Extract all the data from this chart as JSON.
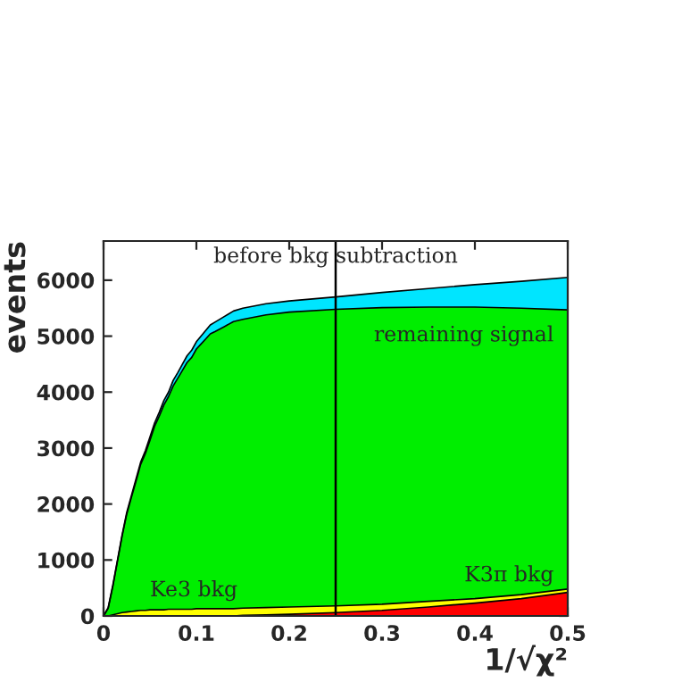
{
  "chart_data": {
    "type": "area",
    "stacked": true,
    "xlabel": "1/√χ²",
    "ylabel": "events",
    "x": [
      0,
      0.005,
      0.01,
      0.015,
      0.02,
      0.025,
      0.03,
      0.035,
      0.04,
      0.045,
      0.05,
      0.055,
      0.06,
      0.065,
      0.07,
      0.075,
      0.08,
      0.085,
      0.09,
      0.095,
      0.1,
      0.105,
      0.11,
      0.115,
      0.12,
      0.13,
      0.14,
      0.15,
      0.175,
      0.2,
      0.25,
      0.3,
      0.35,
      0.4,
      0.45,
      0.5
    ],
    "series": [
      {
        "name": "K3π bkg",
        "color": "#ff0000",
        "values": [
          0,
          0,
          0,
          0,
          0,
          0,
          0,
          0,
          0,
          0,
          0,
          0,
          0,
          0,
          0,
          0,
          0,
          0,
          0,
          0,
          0,
          0,
          0,
          0,
          0,
          0,
          0,
          10,
          20,
          30,
          60,
          100,
          160,
          230,
          310,
          420
        ]
      },
      {
        "name": "Ke3 bkg",
        "color": "#ffff00",
        "values": [
          0,
          0,
          20,
          40,
          60,
          70,
          80,
          90,
          100,
          100,
          110,
          110,
          110,
          110,
          120,
          120,
          120,
          120,
          120,
          120,
          130,
          130,
          130,
          130,
          130,
          130,
          130,
          130,
          130,
          130,
          120,
          110,
          100,
          80,
          70,
          60
        ]
      },
      {
        "name": "remaining signal",
        "color": "#00ee00",
        "values": [
          0,
          140,
          510,
          940,
          1370,
          1750,
          2040,
          2320,
          2610,
          2800,
          3030,
          3280,
          3460,
          3660,
          3800,
          3990,
          4130,
          4270,
          4410,
          4500,
          4640,
          4730,
          4820,
          4910,
          4950,
          5040,
          5130,
          5160,
          5230,
          5270,
          5300,
          5300,
          5260,
          5210,
          5120,
          4990
        ]
      },
      {
        "color": "#00e5ff",
        "values": [
          0,
          10,
          20,
          20,
          20,
          30,
          30,
          40,
          40,
          50,
          60,
          60,
          70,
          80,
          80,
          100,
          100,
          110,
          120,
          130,
          130,
          140,
          150,
          160,
          170,
          180,
          190,
          200,
          200,
          200,
          220,
          270,
          330,
          400,
          480,
          580
        ]
      }
    ],
    "xlim": [
      0,
      0.5
    ],
    "ylim": [
      0,
      6700
    ],
    "xticks": [
      {
        "value": 0,
        "label": "0"
      },
      0.1,
      0.2,
      0.3,
      0.4,
      0.5
    ],
    "yticks": [
      0,
      1000,
      2000,
      3000,
      4000,
      5000,
      6000
    ],
    "ref_lines": [
      {
        "axis": "x",
        "value": 0.25,
        "label": "before bkg subtraction",
        "color": "#000000"
      }
    ],
    "grid": false,
    "legend": false
  }
}
